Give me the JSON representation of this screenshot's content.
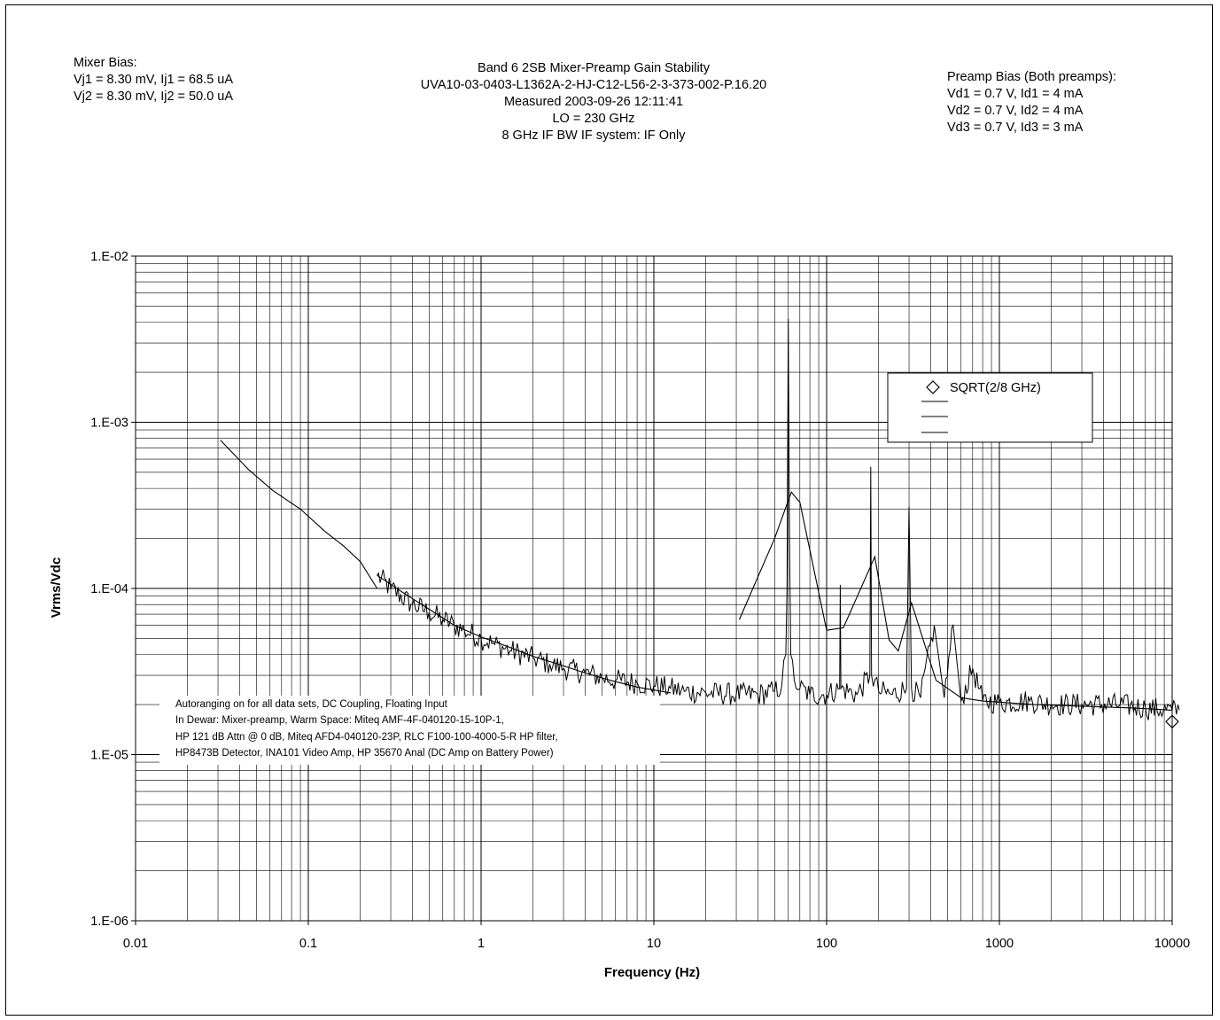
{
  "mixer_bias": {
    "heading": "Mixer Bias:",
    "line1": "Vj1 = 8.30 mV, Ij1 = 68.5 uA",
    "line2": "Vj2 = 8.30 mV, Ij2 = 50.0 uA"
  },
  "title_block": {
    "line1": "Band 6 2SB Mixer-Preamp Gain Stability",
    "line2": "UVA10-03-0403-L1362A-2-HJ-C12-L56-2-3-373-002-P.16.20",
    "line3": "Measured 2003-09-26 12:11:41",
    "line4": "LO = 230 GHz",
    "line5": "8 GHz IF BW IF system: IF Only"
  },
  "preamp_bias": {
    "heading": "Preamp Bias (Both preamps):",
    "line1": "Vd1 = 0.7 V, Id1 = 4 mA",
    "line2": "Vd2 = 0.7 V, Id2 = 4 mA",
    "line3": "Vd3 = 0.7 V, Id3 = 3 mA"
  },
  "notes": {
    "line1": "Autoranging on for all data sets, DC Coupling, Floating Input",
    "line2": "In Dewar: Mixer-preamp,  Warm Space:  Miteq AMF-4F-040120-15-10P-1,",
    "line3": "HP 121 dB Attn @ 0 dB, Miteq AFD4-040120-23P,  RLC F100-100-4000-5-R HP filter,",
    "line4": "HP8473B Detector, INA101 Video Amp, HP 35670 Anal (DC Amp on Battery Power)"
  },
  "chart_data": {
    "type": "line",
    "title": "",
    "xlabel": "Frequency (Hz)",
    "ylabel": "Vrms/Vdc",
    "x_scale": "log",
    "y_scale": "log",
    "xlim": [
      0.01,
      10000
    ],
    "ylim": [
      1e-06,
      0.01
    ],
    "grid": true,
    "x_tick_labels": [
      "0.01",
      "0.1",
      "1",
      "10",
      "100",
      "1000",
      "10000"
    ],
    "y_tick_labels": [
      "1.E-06",
      "1.E-05",
      "1.E-04",
      "1.E-03",
      "1.E-02"
    ],
    "legend": {
      "placement": "upper-right",
      "entries": [
        {
          "label": "SQRT(2/8 GHz)",
          "marker": "diamond"
        },
        {
          "label": "",
          "marker": "line"
        },
        {
          "label": "",
          "marker": "line"
        },
        {
          "label": "",
          "marker": "line"
        }
      ]
    },
    "series": [
      {
        "style": "line",
        "x": [
          0.031,
          0.045,
          0.062,
          0.09,
          0.125,
          0.16,
          0.2,
          0.25
        ],
        "y": [
          0.00078,
          0.00052,
          0.00039,
          0.0003,
          0.00022,
          0.00018,
          0.000145,
          0.0001
        ]
      },
      {
        "style": "line",
        "x": [
          0.25,
          0.35,
          0.5,
          0.7,
          1.0,
          1.4,
          2.0,
          2.8,
          4.0,
          5.6,
          8.0,
          12.5
        ],
        "y": [
          0.00012,
          9.5e-05,
          7.5e-05,
          6e-05,
          5.1e-05,
          4.5e-05,
          3.9e-05,
          3.5e-05,
          3.1e-05,
          2.8e-05,
          2.55e-05,
          2.35e-05
        ]
      },
      {
        "style": "line",
        "x": [
          31.25,
          50,
          62.5,
          70,
          100,
          125,
          190,
          230,
          260,
          310,
          430,
          600,
          800,
          1600,
          3200,
          6400,
          10000
        ],
        "y": [
          6.5e-05,
          0.0002,
          0.00038,
          0.00033,
          5.6e-05,
          5.8e-05,
          0.000155,
          4.9e-05,
          4.2e-05,
          8.2e-05,
          2.8e-05,
          2.2e-05,
          2.1e-05,
          2e-05,
          1.95e-05,
          1.9e-05,
          1.85e-05
        ]
      },
      {
        "style": "noisy-line",
        "x": [
          0.25,
          0.3,
          0.4,
          0.5,
          0.6,
          0.7,
          0.8,
          1.0,
          1.2,
          1.5,
          2.0,
          2.5,
          3.0,
          4.0,
          5.0,
          6.0,
          8.0,
          10.0,
          12.5,
          15,
          20,
          30,
          40,
          50,
          55,
          58,
          59,
          60,
          61,
          62,
          65,
          70,
          80,
          100,
          119,
          120,
          121,
          150,
          178,
          180,
          182,
          200,
          240,
          290,
          300,
          310,
          350,
          420,
          480,
          540,
          600,
          700,
          800,
          1000,
          1500,
          2000,
          3000,
          5000,
          7000,
          10000,
          11000
        ],
        "y": [
          0.00012,
          0.0001,
          8e-05,
          7.2e-05,
          6.5e-05,
          6e-05,
          5.6e-05,
          5e-05,
          4.6e-05,
          4.2e-05,
          3.8e-05,
          3.5e-05,
          3.3e-05,
          3.1e-05,
          2.9e-05,
          2.8e-05,
          2.7e-05,
          2.6e-05,
          2.5e-05,
          2.4e-05,
          2.35e-05,
          2.3e-05,
          2.3e-05,
          2.4e-05,
          2.6e-05,
          4e-05,
          0.0001,
          0.0042,
          0.0002,
          4e-05,
          2.8e-05,
          2.5e-05,
          2.3e-05,
          2.3e-05,
          2.5e-05,
          0.000105,
          2.5e-05,
          2.3e-05,
          3e-05,
          0.00054,
          3e-05,
          2.4e-05,
          2.3e-05,
          2.5e-05,
          0.00031,
          2.5e-05,
          2.2e-05,
          6e-05,
          2.2e-05,
          6e-05,
          2.1e-05,
          3.3e-05,
          2.1e-05,
          2.05e-05,
          2.1e-05,
          2e-05,
          2e-05,
          2e-05,
          1.9e-05,
          1.85e-05,
          1.85e-05
        ]
      },
      {
        "style": "marker",
        "name": "SQRT(2/8 GHz)",
        "x": [
          10000
        ],
        "y": [
          1.58e-05
        ]
      }
    ]
  }
}
